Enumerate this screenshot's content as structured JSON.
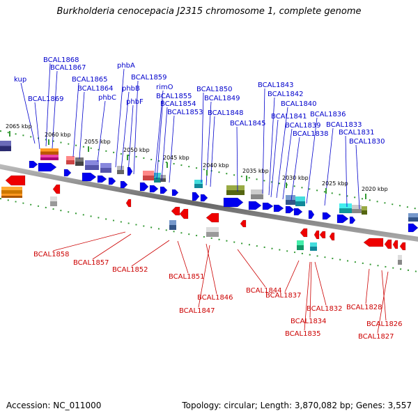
{
  "title": "Burkholderia cenocepacia J2315 chromosome 1, complete genome",
  "footer": {
    "accession": "Accession: NC_011000",
    "summary": "Topology: circular; Length: 3,870,082 bp; Genes: 3,557"
  },
  "colors": {
    "forward_label": "#0000cc",
    "reverse_label": "#cc0000",
    "forward_gene": "#0000ee",
    "reverse_gene": "#ee0000",
    "backbone": "#777777",
    "tick": "#339933"
  },
  "scale_labels": [
    "2065 kbp",
    "2060 kbp",
    "2055 kbp",
    "2050 kbp",
    "2045 kbp",
    "2040 kbp",
    "2035 kbp",
    "2030 kbp",
    "2025 kbp",
    "2020 kbp"
  ],
  "forward_genes": [
    "kup",
    "BCAL1869",
    "BCAL1868",
    "BCAL1867",
    "BCAL1865",
    "BCAL1864",
    "phbC",
    "phbA",
    "phbB",
    "phbF",
    "BCAL1859",
    "rimO",
    "BCAL1855",
    "BCAL1854",
    "BCAL1853",
    "BCAL1850",
    "BCAL1849",
    "BCAL1848",
    "BCAL1845",
    "BCAL1843",
    "BCAL1842",
    "BCAL1841",
    "BCAL1840",
    "BCAL1839",
    "BCAL1838",
    "BCAL1836",
    "BCAL1833",
    "BCAL1831",
    "BCAL1830"
  ],
  "reverse_genes": [
    "BCAL1858",
    "BCAL1857",
    "BCAL1852",
    "BCAL1851",
    "BCAL1846",
    "BCAL1847",
    "BCAL1844",
    "BCAL1837",
    "BCAL1832",
    "BCAL1834",
    "BCAL1835",
    "BCAL1828",
    "BCAL1826",
    "BCAL1827"
  ]
}
